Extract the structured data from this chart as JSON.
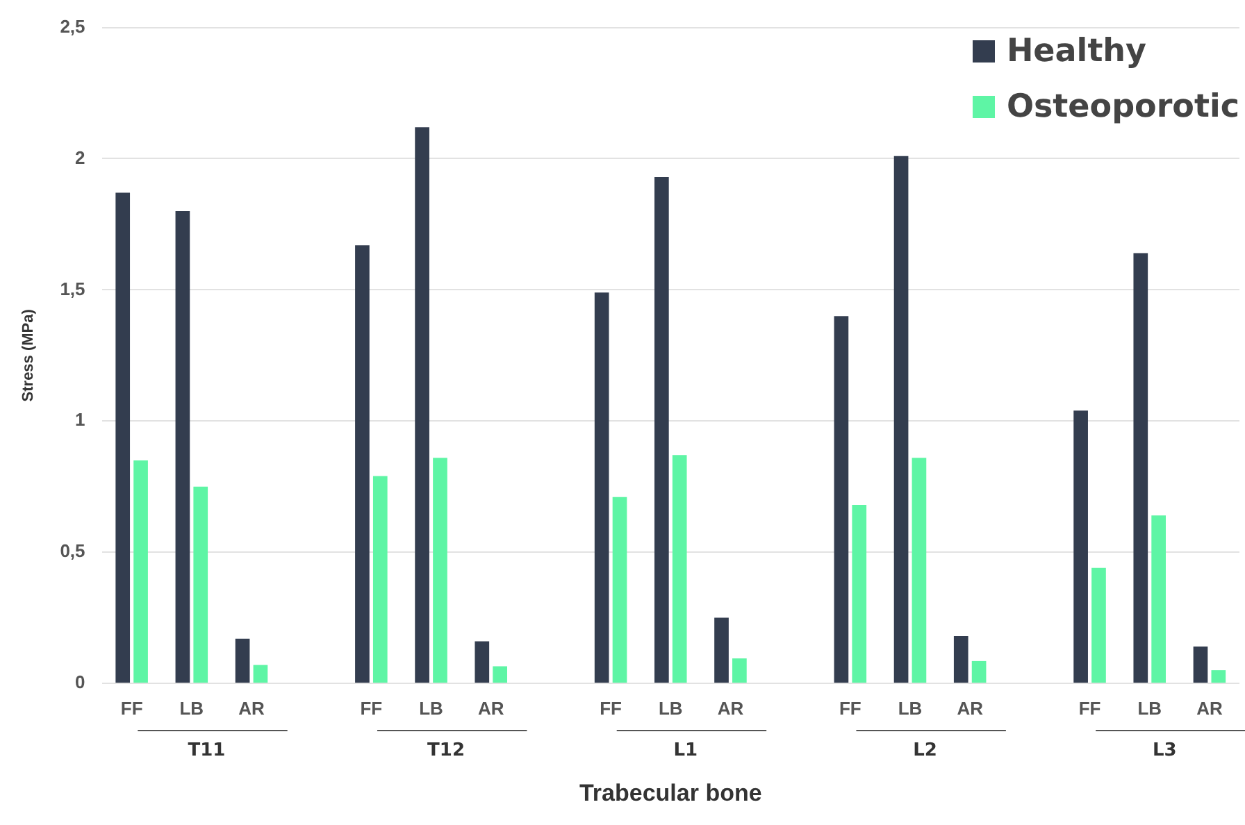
{
  "chart_data": {
    "type": "bar",
    "xlabel": "Trabecular bone",
    "ylabel": "Stress (MPa)",
    "categories": [
      "FF",
      "LB",
      "AR",
      null,
      "FF",
      "LB",
      "AR",
      null,
      "FF",
      "LB",
      "AR",
      null,
      "FF",
      "LB",
      "AR",
      null,
      "FF",
      "LB",
      "AR"
    ],
    "series": [
      {
        "name": "Healthy",
        "color": "#333d4f",
        "values": [
          1.87,
          1.8,
          0.17,
          null,
          1.67,
          2.12,
          0.16,
          null,
          1.49,
          1.93,
          0.25,
          null,
          1.4,
          2.01,
          0.18,
          null,
          1.04,
          1.64,
          0.14
        ]
      },
      {
        "name": "Osteoporotic",
        "color": "#5ef5a5",
        "values": [
          0.85,
          0.75,
          0.07,
          null,
          0.79,
          0.86,
          0.065,
          null,
          0.71,
          0.87,
          0.095,
          null,
          0.68,
          0.86,
          0.085,
          null,
          0.44,
          0.64,
          0.05
        ]
      }
    ],
    "annotations": [
      "T11",
      "T12",
      "L1",
      "L2",
      "L3"
    ],
    "ylim": [
      0,
      2.5
    ],
    "yticks": [
      0,
      {
        "value": 0.5,
        "label": "0,5"
      },
      1,
      {
        "value": 1.5,
        "label": "1,5"
      },
      2,
      {
        "value": 2.5,
        "label": "2,5"
      }
    ],
    "grid": "y",
    "legend": "top right"
  }
}
